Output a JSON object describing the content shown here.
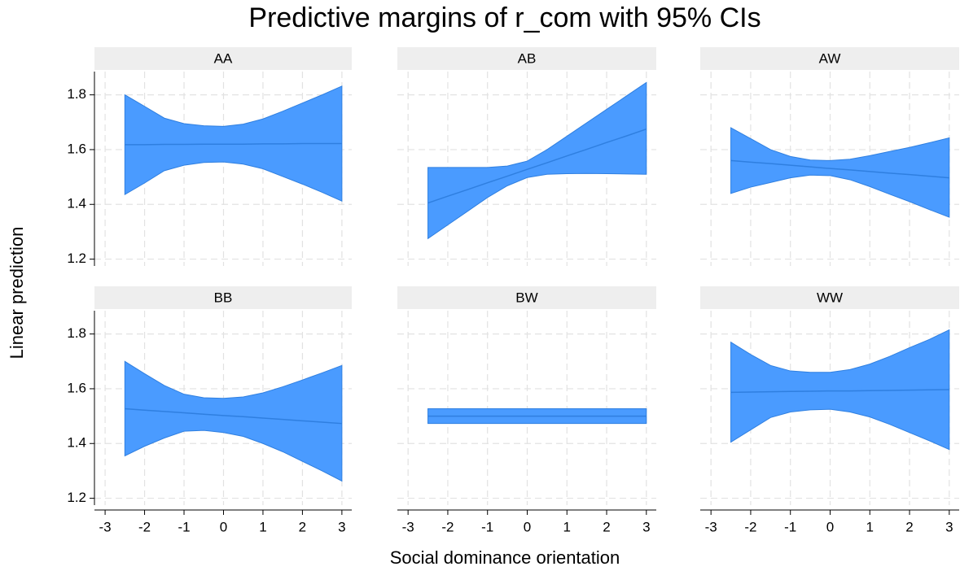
{
  "chart_data": {
    "type": "line",
    "title": "Predictive margins of r_com with 95% CIs",
    "x_label": "Social dominance orientation",
    "y_label": "Linear prediction",
    "x": [
      -2.5,
      -2,
      -1.5,
      -1,
      -0.5,
      0,
      0.5,
      1,
      1.5,
      2,
      2.5,
      3
    ],
    "xlim": [
      -3.27,
      3.25
    ],
    "ylim": [
      1.175,
      1.885
    ],
    "xticks": [
      -3,
      -2,
      -1,
      0,
      1,
      2,
      3
    ],
    "yticks": [
      1.2,
      1.4,
      1.6,
      1.8
    ],
    "grid": true,
    "color": "#4a9bff",
    "line_color": "#2f7fe0",
    "panels": [
      {
        "name": "AA",
        "values": [
          1.618,
          1.618,
          1.619,
          1.619,
          1.62,
          1.62,
          1.62,
          1.621,
          1.621,
          1.622,
          1.622,
          1.622
        ],
        "upper": [
          1.8,
          1.758,
          1.715,
          1.695,
          1.687,
          1.685,
          1.693,
          1.712,
          1.74,
          1.77,
          1.8,
          1.832
        ],
        "lower": [
          1.436,
          1.478,
          1.523,
          1.543,
          1.553,
          1.555,
          1.547,
          1.53,
          1.502,
          1.474,
          1.444,
          1.412
        ]
      },
      {
        "name": "AB",
        "values": [
          1.405,
          1.43,
          1.454,
          1.479,
          1.503,
          1.528,
          1.552,
          1.577,
          1.601,
          1.626,
          1.65,
          1.675
        ],
        "upper": [
          1.535,
          1.535,
          1.535,
          1.535,
          1.54,
          1.558,
          1.6,
          1.649,
          1.698,
          1.747,
          1.796,
          1.845
        ],
        "lower": [
          1.275,
          1.325,
          1.375,
          1.425,
          1.468,
          1.498,
          1.51,
          1.512,
          1.513,
          1.512,
          1.511,
          1.51
        ]
      },
      {
        "name": "AW",
        "values": [
          1.56,
          1.554,
          1.549,
          1.543,
          1.537,
          1.531,
          1.526,
          1.52,
          1.514,
          1.509,
          1.503,
          1.497
        ],
        "upper": [
          1.68,
          1.64,
          1.6,
          1.575,
          1.562,
          1.56,
          1.565,
          1.578,
          1.593,
          1.608,
          1.625,
          1.643
        ],
        "lower": [
          1.44,
          1.463,
          1.48,
          1.497,
          1.507,
          1.505,
          1.49,
          1.465,
          1.437,
          1.41,
          1.381,
          1.353
        ]
      },
      {
        "name": "BB",
        "values": [
          1.527,
          1.522,
          1.517,
          1.512,
          1.507,
          1.502,
          1.498,
          1.493,
          1.488,
          1.483,
          1.478,
          1.473
        ],
        "upper": [
          1.7,
          1.655,
          1.612,
          1.58,
          1.567,
          1.565,
          1.57,
          1.585,
          1.607,
          1.632,
          1.658,
          1.685
        ],
        "lower": [
          1.355,
          1.39,
          1.42,
          1.445,
          1.448,
          1.44,
          1.426,
          1.4,
          1.37,
          1.335,
          1.3,
          1.263
        ]
      },
      {
        "name": "BW",
        "values": [
          1.5,
          1.5,
          1.5,
          1.5,
          1.5,
          1.5,
          1.5,
          1.5,
          1.5,
          1.5,
          1.5,
          1.5
        ],
        "upper": [
          1.527,
          1.527,
          1.527,
          1.527,
          1.527,
          1.527,
          1.527,
          1.527,
          1.527,
          1.527,
          1.527,
          1.527
        ],
        "lower": [
          1.473,
          1.473,
          1.473,
          1.473,
          1.473,
          1.473,
          1.473,
          1.473,
          1.473,
          1.473,
          1.473,
          1.473
        ]
      },
      {
        "name": "WW",
        "values": [
          1.587,
          1.588,
          1.589,
          1.59,
          1.591,
          1.592,
          1.592,
          1.593,
          1.594,
          1.595,
          1.596,
          1.597
        ],
        "upper": [
          1.77,
          1.725,
          1.685,
          1.665,
          1.66,
          1.66,
          1.67,
          1.69,
          1.718,
          1.75,
          1.78,
          1.815
        ],
        "lower": [
          1.405,
          1.45,
          1.495,
          1.515,
          1.523,
          1.525,
          1.515,
          1.497,
          1.47,
          1.44,
          1.41,
          1.378
        ]
      }
    ]
  }
}
